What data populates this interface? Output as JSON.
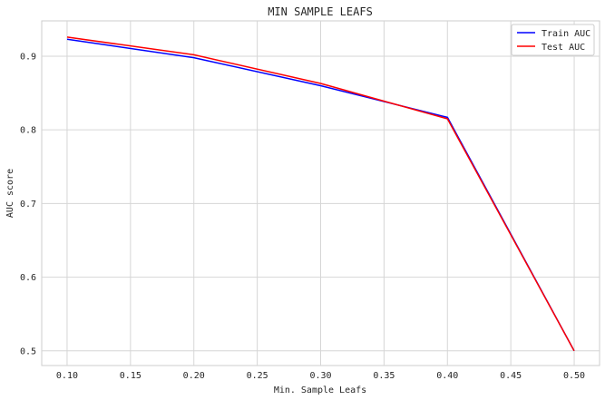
{
  "chart_data": {
    "type": "line",
    "title": "MIN SAMPLE LEAFS",
    "xlabel": "Min. Sample Leafs",
    "ylabel": "AUC score",
    "xlim": [
      0.08,
      0.52
    ],
    "ylim": [
      0.48,
      0.948
    ],
    "xticks": [
      "0.10",
      "0.15",
      "0.20",
      "0.25",
      "0.30",
      "0.35",
      "0.40",
      "0.45",
      "0.50"
    ],
    "yticks": [
      "0.5",
      "0.6",
      "0.7",
      "0.8",
      "0.9"
    ],
    "grid": true,
    "legend_position": "top-right",
    "x": [
      0.1,
      0.2,
      0.3,
      0.4,
      0.5
    ],
    "series": [
      {
        "name": "Train AUC",
        "color": "#0000ff",
        "values": [
          0.923,
          0.898,
          0.86,
          0.817,
          0.5
        ]
      },
      {
        "name": "Test AUC",
        "color": "#ff0000",
        "values": [
          0.926,
          0.902,
          0.863,
          0.815,
          0.5
        ]
      }
    ]
  }
}
